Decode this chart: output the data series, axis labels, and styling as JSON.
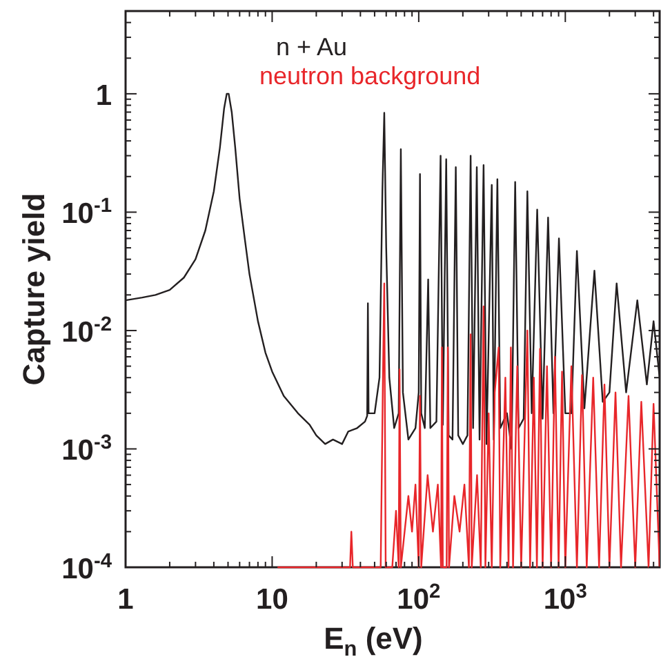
{
  "chart_data": {
    "type": "line",
    "xlabel": "E$_{n}$ (eV)",
    "ylabel": "Capture yield",
    "log": "xy",
    "legend": "top",
    "xlim": [
      1,
      4400
    ],
    "ylim": [
      0.0001,
      5
    ],
    "xticks": [
      1,
      {
        "value": 2,
        "label": null
      },
      {
        "value": 3,
        "label": null
      },
      {
        "value": 4,
        "label": null
      },
      {
        "value": 5,
        "label": null
      },
      {
        "value": 6,
        "label": null
      },
      {
        "value": 7,
        "label": null
      },
      {
        "value": 8,
        "label": null
      },
      {
        "value": 9,
        "label": null
      },
      10,
      {
        "value": 20,
        "label": null
      },
      {
        "value": 30,
        "label": null
      },
      {
        "value": 40,
        "label": null
      },
      {
        "value": 50,
        "label": null
      },
      {
        "value": 60,
        "label": null
      },
      {
        "value": 70,
        "label": null
      },
      {
        "value": 80,
        "label": null
      },
      {
        "value": 90,
        "label": null
      },
      {
        "value": 100,
        "label": "10$^{2}$"
      },
      {
        "value": 200,
        "label": null
      },
      {
        "value": 300,
        "label": null
      },
      {
        "value": 400,
        "label": null
      },
      {
        "value": 500,
        "label": null
      },
      {
        "value": 600,
        "label": null
      },
      {
        "value": 700,
        "label": null
      },
      {
        "value": 800,
        "label": null
      },
      {
        "value": 900,
        "label": null
      },
      {
        "value": 1000,
        "label": "10$^{3}$"
      },
      {
        "value": 2000,
        "label": null
      },
      {
        "value": 3000,
        "label": null
      },
      {
        "value": 4000,
        "label": null
      }
    ],
    "yticks": [
      {
        "value": 0.0001,
        "label": "10$^{-4}$"
      },
      {
        "value": 0.0002,
        "label": null
      },
      {
        "value": 0.0003,
        "label": null
      },
      {
        "value": 0.0004,
        "label": null
      },
      {
        "value": 0.0005,
        "label": null
      },
      {
        "value": 0.0006,
        "label": null
      },
      {
        "value": 0.0007,
        "label": null
      },
      {
        "value": 0.0008,
        "label": null
      },
      {
        "value": 0.0009,
        "label": null
      },
      {
        "value": 0.001,
        "label": "10$^{-3}$"
      },
      {
        "value": 0.002,
        "label": null
      },
      {
        "value": 0.003,
        "label": null
      },
      {
        "value": 0.004,
        "label": null
      },
      {
        "value": 0.005,
        "label": null
      },
      {
        "value": 0.006,
        "label": null
      },
      {
        "value": 0.007,
        "label": null
      },
      {
        "value": 0.008,
        "label": null
      },
      {
        "value": 0.009,
        "label": null
      },
      {
        "value": 0.01,
        "label": "10$^{-2}$"
      },
      {
        "value": 0.02,
        "label": null
      },
      {
        "value": 0.03,
        "label": null
      },
      {
        "value": 0.04,
        "label": null
      },
      {
        "value": 0.05,
        "label": null
      },
      {
        "value": 0.06,
        "label": null
      },
      {
        "value": 0.07,
        "label": null
      },
      {
        "value": 0.08,
        "label": null
      },
      {
        "value": 0.09,
        "label": null
      },
      {
        "value": 0.1,
        "label": "10$^{-1}$"
      },
      {
        "value": 0.2,
        "label": null
      },
      {
        "value": 0.3,
        "label": null
      },
      {
        "value": 0.4,
        "label": null
      },
      {
        "value": 0.5,
        "label": null
      },
      {
        "value": 0.6,
        "label": null
      },
      {
        "value": 0.7,
        "label": null
      },
      {
        "value": 0.8,
        "label": null
      },
      {
        "value": 0.9,
        "label": null
      },
      1,
      {
        "value": 2,
        "label": null
      },
      {
        "value": 3,
        "label": null
      },
      {
        "value": 4,
        "label": null
      },
      {
        "value": 5,
        "label": null
      }
    ],
    "series": [
      {
        "name": "n + Au",
        "color": "#231f20",
        "x": [
          1,
          1.3,
          1.6,
          2,
          2.5,
          3,
          3.5,
          4,
          4.4,
          4.7,
          4.9,
          5.05,
          5.3,
          5.6,
          6,
          6.5,
          7,
          8,
          9,
          10,
          12,
          15,
          18,
          20,
          23,
          26,
          30,
          33,
          38,
          43,
          44.5,
          45,
          45.5,
          50,
          54,
          56.5,
          58.2,
          60,
          63,
          68,
          73,
          75.5,
          78,
          85,
          95,
          100,
          102,
          104,
          110,
          116,
          120,
          132,
          141,
          146,
          154,
          160,
          170,
          179,
          186,
          200,
          215,
          226,
          235,
          249,
          260,
          277,
          290,
          315,
          325,
          344,
          360,
          400,
          430,
          455,
          480,
          520,
          551,
          590,
          643,
          700,
          763,
          830,
          905,
          1000,
          1100,
          1200,
          1350,
          1580,
          1800,
          2000,
          2240,
          2600,
          3100,
          3600,
          4000,
          4400
        ],
        "values": [
          0.018,
          0.019,
          0.02,
          0.022,
          0.028,
          0.04,
          0.07,
          0.15,
          0.35,
          0.75,
          1.0,
          1.0,
          0.7,
          0.35,
          0.13,
          0.06,
          0.03,
          0.012,
          0.0065,
          0.0045,
          0.0028,
          0.002,
          0.0016,
          0.0013,
          0.0011,
          0.0012,
          0.0011,
          0.0014,
          0.0015,
          0.0017,
          0.0019,
          0.017,
          0.002,
          0.002,
          0.004,
          0.15,
          0.69,
          0.05,
          0.004,
          0.0015,
          0.002,
          0.34,
          0.003,
          0.0012,
          0.0015,
          0.003,
          0.21,
          0.002,
          0.0015,
          0.027,
          0.0015,
          0.0017,
          0.3,
          0.0016,
          0.28,
          0.0013,
          0.0012,
          0.24,
          0.0013,
          0.0011,
          0.0013,
          0.3,
          0.0015,
          0.24,
          0.0012,
          0.25,
          0.0011,
          0.17,
          0.0012,
          0.19,
          0.0015,
          0.002,
          0.001,
          0.18,
          0.0015,
          0.0018,
          0.15,
          0.002,
          0.105,
          0.0018,
          0.09,
          0.002,
          0.06,
          0.002,
          0.002,
          0.047,
          0.0022,
          0.032,
          0.0025,
          0.003,
          0.025,
          0.003,
          0.018,
          0.0035,
          0.012,
          0.004
        ]
      },
      {
        "name": "neutron background",
        "color": "#e8262a",
        "x": [
          11,
          30,
          34,
          34.7,
          35.5,
          50,
          55,
          57,
          58.2,
          59.5,
          66,
          70,
          73,
          74,
          75.5,
          85,
          90,
          95,
          100,
          102,
          104,
          115,
          125,
          135,
          142,
          144,
          146,
          155,
          158,
          161,
          175,
          190,
          205,
          220,
          226,
          230,
          250,
          265,
          277,
          285,
          300,
          315,
          330,
          351,
          360,
          390,
          410,
          425,
          440,
          470,
          500,
          551,
          575,
          610,
          640,
          672,
          700,
          750,
          800,
          850,
          900,
          950,
          1000,
          1100,
          1200,
          1300,
          1400,
          1550,
          1700,
          1850,
          2000,
          2200,
          2400,
          2700,
          3000,
          3300,
          3700,
          4000,
          4400
        ],
        "values": [
          0.0001,
          0.0001,
          0.0001,
          0.0002,
          0.0001,
          0.0001,
          0.0001,
          0.004,
          0.025,
          0.0001,
          0.0001,
          0.0003,
          0.0001,
          0.0047,
          0.0001,
          0.0004,
          0.0002,
          0.0005,
          0.0001,
          0.0028,
          0.0001,
          0.0006,
          0.0002,
          0.0005,
          0.0001,
          0.0072,
          0.0001,
          0.0001,
          0.0072,
          0.0001,
          0.0004,
          0.0002,
          0.0005,
          0.0001,
          0.0093,
          0.0001,
          0.0006,
          0.0001,
          0.016,
          0.0001,
          0.002,
          0.0001,
          0.003,
          0.0072,
          0.0001,
          0.004,
          0.0001,
          0.0072,
          0.0001,
          0.005,
          0.0001,
          0.01,
          0.0001,
          0.004,
          0.0001,
          0.007,
          0.0001,
          0.005,
          0.0001,
          0.006,
          0.0001,
          0.0045,
          0.0001,
          0.005,
          0.0001,
          0.0042,
          0.0001,
          0.004,
          0.0001,
          0.0035,
          0.0001,
          0.003,
          0.0001,
          0.0028,
          0.0001,
          0.0025,
          0.0001,
          0.0024,
          0.0001
        ]
      }
    ]
  }
}
